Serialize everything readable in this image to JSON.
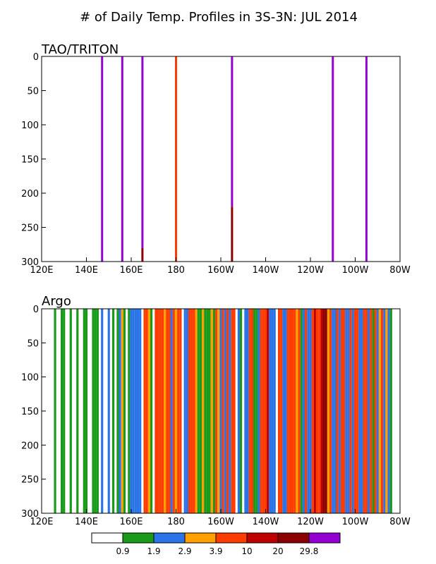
{
  "title": "# of Daily Temp. Profiles in 3S-3N: JUL 2014",
  "chart_data": [
    {
      "type": "heatmap",
      "panel_label": "TAO/TRITON",
      "x_range_deg_east": [
        120,
        280
      ],
      "x_ticks": [
        {
          "lon": 120,
          "label": "120E"
        },
        {
          "lon": 140,
          "label": "140E"
        },
        {
          "lon": 160,
          "label": "160E"
        },
        {
          "lon": 180,
          "label": "180"
        },
        {
          "lon": 200,
          "label": "160W"
        },
        {
          "lon": 220,
          "label": "140W"
        },
        {
          "lon": 240,
          "label": "120W"
        },
        {
          "lon": 260,
          "label": "100W"
        },
        {
          "lon": 280,
          "label": "80W"
        }
      ],
      "y_range_depth": [
        0,
        300
      ],
      "y_ticks": [
        0,
        50,
        100,
        150,
        200,
        250,
        300
      ],
      "columns": [
        {
          "lon": 147,
          "segments": [
            {
              "top": 0,
              "bottom": 300,
              "bin": 7
            }
          ]
        },
        {
          "lon": 156,
          "segments": [
            {
              "top": 0,
              "bottom": 300,
              "bin": 7
            }
          ]
        },
        {
          "lon": 165,
          "segments": [
            {
              "top": 0,
              "bottom": 280,
              "bin": 7
            },
            {
              "top": 280,
              "bottom": 300,
              "bin": 6
            }
          ]
        },
        {
          "lon": 180,
          "segments": [
            {
              "top": 0,
              "bottom": 300,
              "bin": 4
            }
          ]
        },
        {
          "lon": 205,
          "segments": [
            {
              "top": 0,
              "bottom": 220,
              "bin": 7
            },
            {
              "top": 220,
              "bottom": 300,
              "bin": 6
            }
          ]
        },
        {
          "lon": 250,
          "segments": [
            {
              "top": 0,
              "bottom": 300,
              "bin": 7
            }
          ]
        },
        {
          "lon": 265,
          "segments": [
            {
              "top": 0,
              "bottom": 300,
              "bin": 7
            }
          ]
        }
      ]
    },
    {
      "type": "heatmap",
      "panel_label": "Argo",
      "x_range_deg_east": [
        120,
        280
      ],
      "x_ticks": [
        {
          "lon": 120,
          "label": "120E"
        },
        {
          "lon": 140,
          "label": "140E"
        },
        {
          "lon": 160,
          "label": "160E"
        },
        {
          "lon": 180,
          "label": "180"
        },
        {
          "lon": 200,
          "label": "160W"
        },
        {
          "lon": 220,
          "label": "140W"
        },
        {
          "lon": 240,
          "label": "120W"
        },
        {
          "lon": 260,
          "label": "100W"
        },
        {
          "lon": 280,
          "label": "80W"
        }
      ],
      "y_range_depth": [
        0,
        300
      ],
      "y_ticks": [
        0,
        50,
        100,
        150,
        200,
        250,
        300
      ],
      "columns": [
        {
          "lon": 126,
          "bin": 1
        },
        {
          "lon": 129,
          "bin": 1
        },
        {
          "lon": 130,
          "bin": 1
        },
        {
          "lon": 133,
          "bin": 1
        },
        {
          "lon": 136,
          "bin": 1
        },
        {
          "lon": 139,
          "bin": 1
        },
        {
          "lon": 140,
          "bin": 1
        },
        {
          "lon": 143,
          "bin": 1
        },
        {
          "lon": 144,
          "bin": 1
        },
        {
          "lon": 145,
          "bin": 1
        },
        {
          "lon": 147,
          "bin": 2
        },
        {
          "lon": 150,
          "bin": 2
        },
        {
          "lon": 152,
          "bin": 1
        },
        {
          "lon": 154,
          "bin": 1
        },
        {
          "lon": 155,
          "bin": 2
        },
        {
          "lon": 156,
          "bin": 3
        },
        {
          "lon": 157,
          "bin": 1
        },
        {
          "lon": 159,
          "bin": 1
        },
        {
          "lon": 160,
          "bin": 2
        },
        {
          "lon": 161,
          "bin": 2
        },
        {
          "lon": 162,
          "bin": 2
        },
        {
          "lon": 163,
          "bin": 2
        },
        {
          "lon": 164,
          "bin": 2
        },
        {
          "lon": 166,
          "bin": 4
        },
        {
          "lon": 167,
          "bin": 4
        },
        {
          "lon": 168,
          "bin": 3
        },
        {
          "lon": 169,
          "bin": 1
        },
        {
          "lon": 171,
          "bin": 4
        },
        {
          "lon": 172,
          "bin": 4
        },
        {
          "lon": 173,
          "bin": 4
        },
        {
          "lon": 174,
          "bin": 4
        },
        {
          "lon": 175,
          "bin": 3
        },
        {
          "lon": 176,
          "bin": 4
        },
        {
          "lon": 177,
          "bin": 4
        },
        {
          "lon": 178,
          "bin": 2
        },
        {
          "lon": 179,
          "bin": 4
        },
        {
          "lon": 180,
          "bin": 3
        },
        {
          "lon": 181,
          "bin": 4
        },
        {
          "lon": 182,
          "bin": 4
        },
        {
          "lon": 184,
          "bin": 2
        },
        {
          "lon": 185,
          "bin": 2
        },
        {
          "lon": 186,
          "bin": 4
        },
        {
          "lon": 187,
          "bin": 4
        },
        {
          "lon": 188,
          "bin": 4
        },
        {
          "lon": 189,
          "bin": 3
        },
        {
          "lon": 190,
          "bin": 1
        },
        {
          "lon": 191,
          "bin": 1
        },
        {
          "lon": 192,
          "bin": 3
        },
        {
          "lon": 193,
          "bin": 1
        },
        {
          "lon": 194,
          "bin": 1
        },
        {
          "lon": 195,
          "bin": 1
        },
        {
          "lon": 196,
          "bin": 3
        },
        {
          "lon": 197,
          "bin": 1
        },
        {
          "lon": 198,
          "bin": 4
        },
        {
          "lon": 199,
          "bin": 3
        },
        {
          "lon": 200,
          "bin": 2
        },
        {
          "lon": 201,
          "bin": 4
        },
        {
          "lon": 202,
          "bin": 2
        },
        {
          "lon": 203,
          "bin": 4
        },
        {
          "lon": 204,
          "bin": 2
        },
        {
          "lon": 205,
          "bin": 4
        },
        {
          "lon": 206,
          "bin": 4
        },
        {
          "lon": 208,
          "bin": 2
        },
        {
          "lon": 209,
          "bin": 1
        },
        {
          "lon": 211,
          "bin": 2
        },
        {
          "lon": 212,
          "bin": 2
        },
        {
          "lon": 213,
          "bin": 4
        },
        {
          "lon": 214,
          "bin": 4
        },
        {
          "lon": 215,
          "bin": 1
        },
        {
          "lon": 216,
          "bin": 1
        },
        {
          "lon": 217,
          "bin": 2
        },
        {
          "lon": 218,
          "bin": 4
        },
        {
          "lon": 219,
          "bin": 4
        },
        {
          "lon": 220,
          "bin": 4
        },
        {
          "lon": 221,
          "bin": 5
        },
        {
          "lon": 222,
          "bin": 2
        },
        {
          "lon": 223,
          "bin": 2
        },
        {
          "lon": 224,
          "bin": 2
        },
        {
          "lon": 226,
          "bin": 4
        },
        {
          "lon": 227,
          "bin": 4
        },
        {
          "lon": 228,
          "bin": 2
        },
        {
          "lon": 229,
          "bin": 2
        },
        {
          "lon": 230,
          "bin": 4
        },
        {
          "lon": 231,
          "bin": 4
        },
        {
          "lon": 232,
          "bin": 4
        },
        {
          "lon": 233,
          "bin": 4
        },
        {
          "lon": 234,
          "bin": 3
        },
        {
          "lon": 235,
          "bin": 4
        },
        {
          "lon": 236,
          "bin": 1
        },
        {
          "lon": 237,
          "bin": 2
        },
        {
          "lon": 238,
          "bin": 4
        },
        {
          "lon": 239,
          "bin": 2
        },
        {
          "lon": 240,
          "bin": 2
        },
        {
          "lon": 241,
          "bin": 4
        },
        {
          "lon": 242,
          "bin": 5
        },
        {
          "lon": 243,
          "bin": 4
        },
        {
          "lon": 244,
          "bin": 4
        },
        {
          "lon": 245,
          "bin": 5
        },
        {
          "lon": 246,
          "bin": 6
        },
        {
          "lon": 247,
          "bin": 6
        },
        {
          "lon": 248,
          "bin": 3
        },
        {
          "lon": 249,
          "bin": 4
        },
        {
          "lon": 250,
          "bin": 2
        },
        {
          "lon": 251,
          "bin": 2
        },
        {
          "lon": 252,
          "bin": 4
        },
        {
          "lon": 253,
          "bin": 2
        },
        {
          "lon": 254,
          "bin": 4
        },
        {
          "lon": 255,
          "bin": 4
        },
        {
          "lon": 256,
          "bin": 2
        },
        {
          "lon": 257,
          "bin": 2
        },
        {
          "lon": 258,
          "bin": 4
        },
        {
          "lon": 259,
          "bin": 2
        },
        {
          "lon": 260,
          "bin": 4
        },
        {
          "lon": 261,
          "bin": 4
        },
        {
          "lon": 262,
          "bin": 2
        },
        {
          "lon": 263,
          "bin": 2
        },
        {
          "lon": 264,
          "bin": 4
        },
        {
          "lon": 265,
          "bin": 4
        },
        {
          "lon": 266,
          "bin": 2
        },
        {
          "lon": 267,
          "bin": 4
        },
        {
          "lon": 268,
          "bin": 1
        },
        {
          "lon": 269,
          "bin": 4
        },
        {
          "lon": 270,
          "bin": 2
        },
        {
          "lon": 271,
          "bin": 3
        },
        {
          "lon": 272,
          "bin": 4
        },
        {
          "lon": 273,
          "bin": 2
        },
        {
          "lon": 274,
          "bin": 3
        },
        {
          "lon": 275,
          "bin": 2
        },
        {
          "lon": 276,
          "bin": 1
        }
      ]
    }
  ],
  "colorbar": {
    "bin_colors": [
      "#ffffff",
      "#1a9a1a",
      "#2a74e8",
      "#ffa000",
      "#ff3c00",
      "#c00000",
      "#8b0000",
      "#9400d3"
    ],
    "labels": [
      "0.9",
      "1.9",
      "2.9",
      "3.9",
      "10",
      "20",
      "29.8"
    ]
  }
}
